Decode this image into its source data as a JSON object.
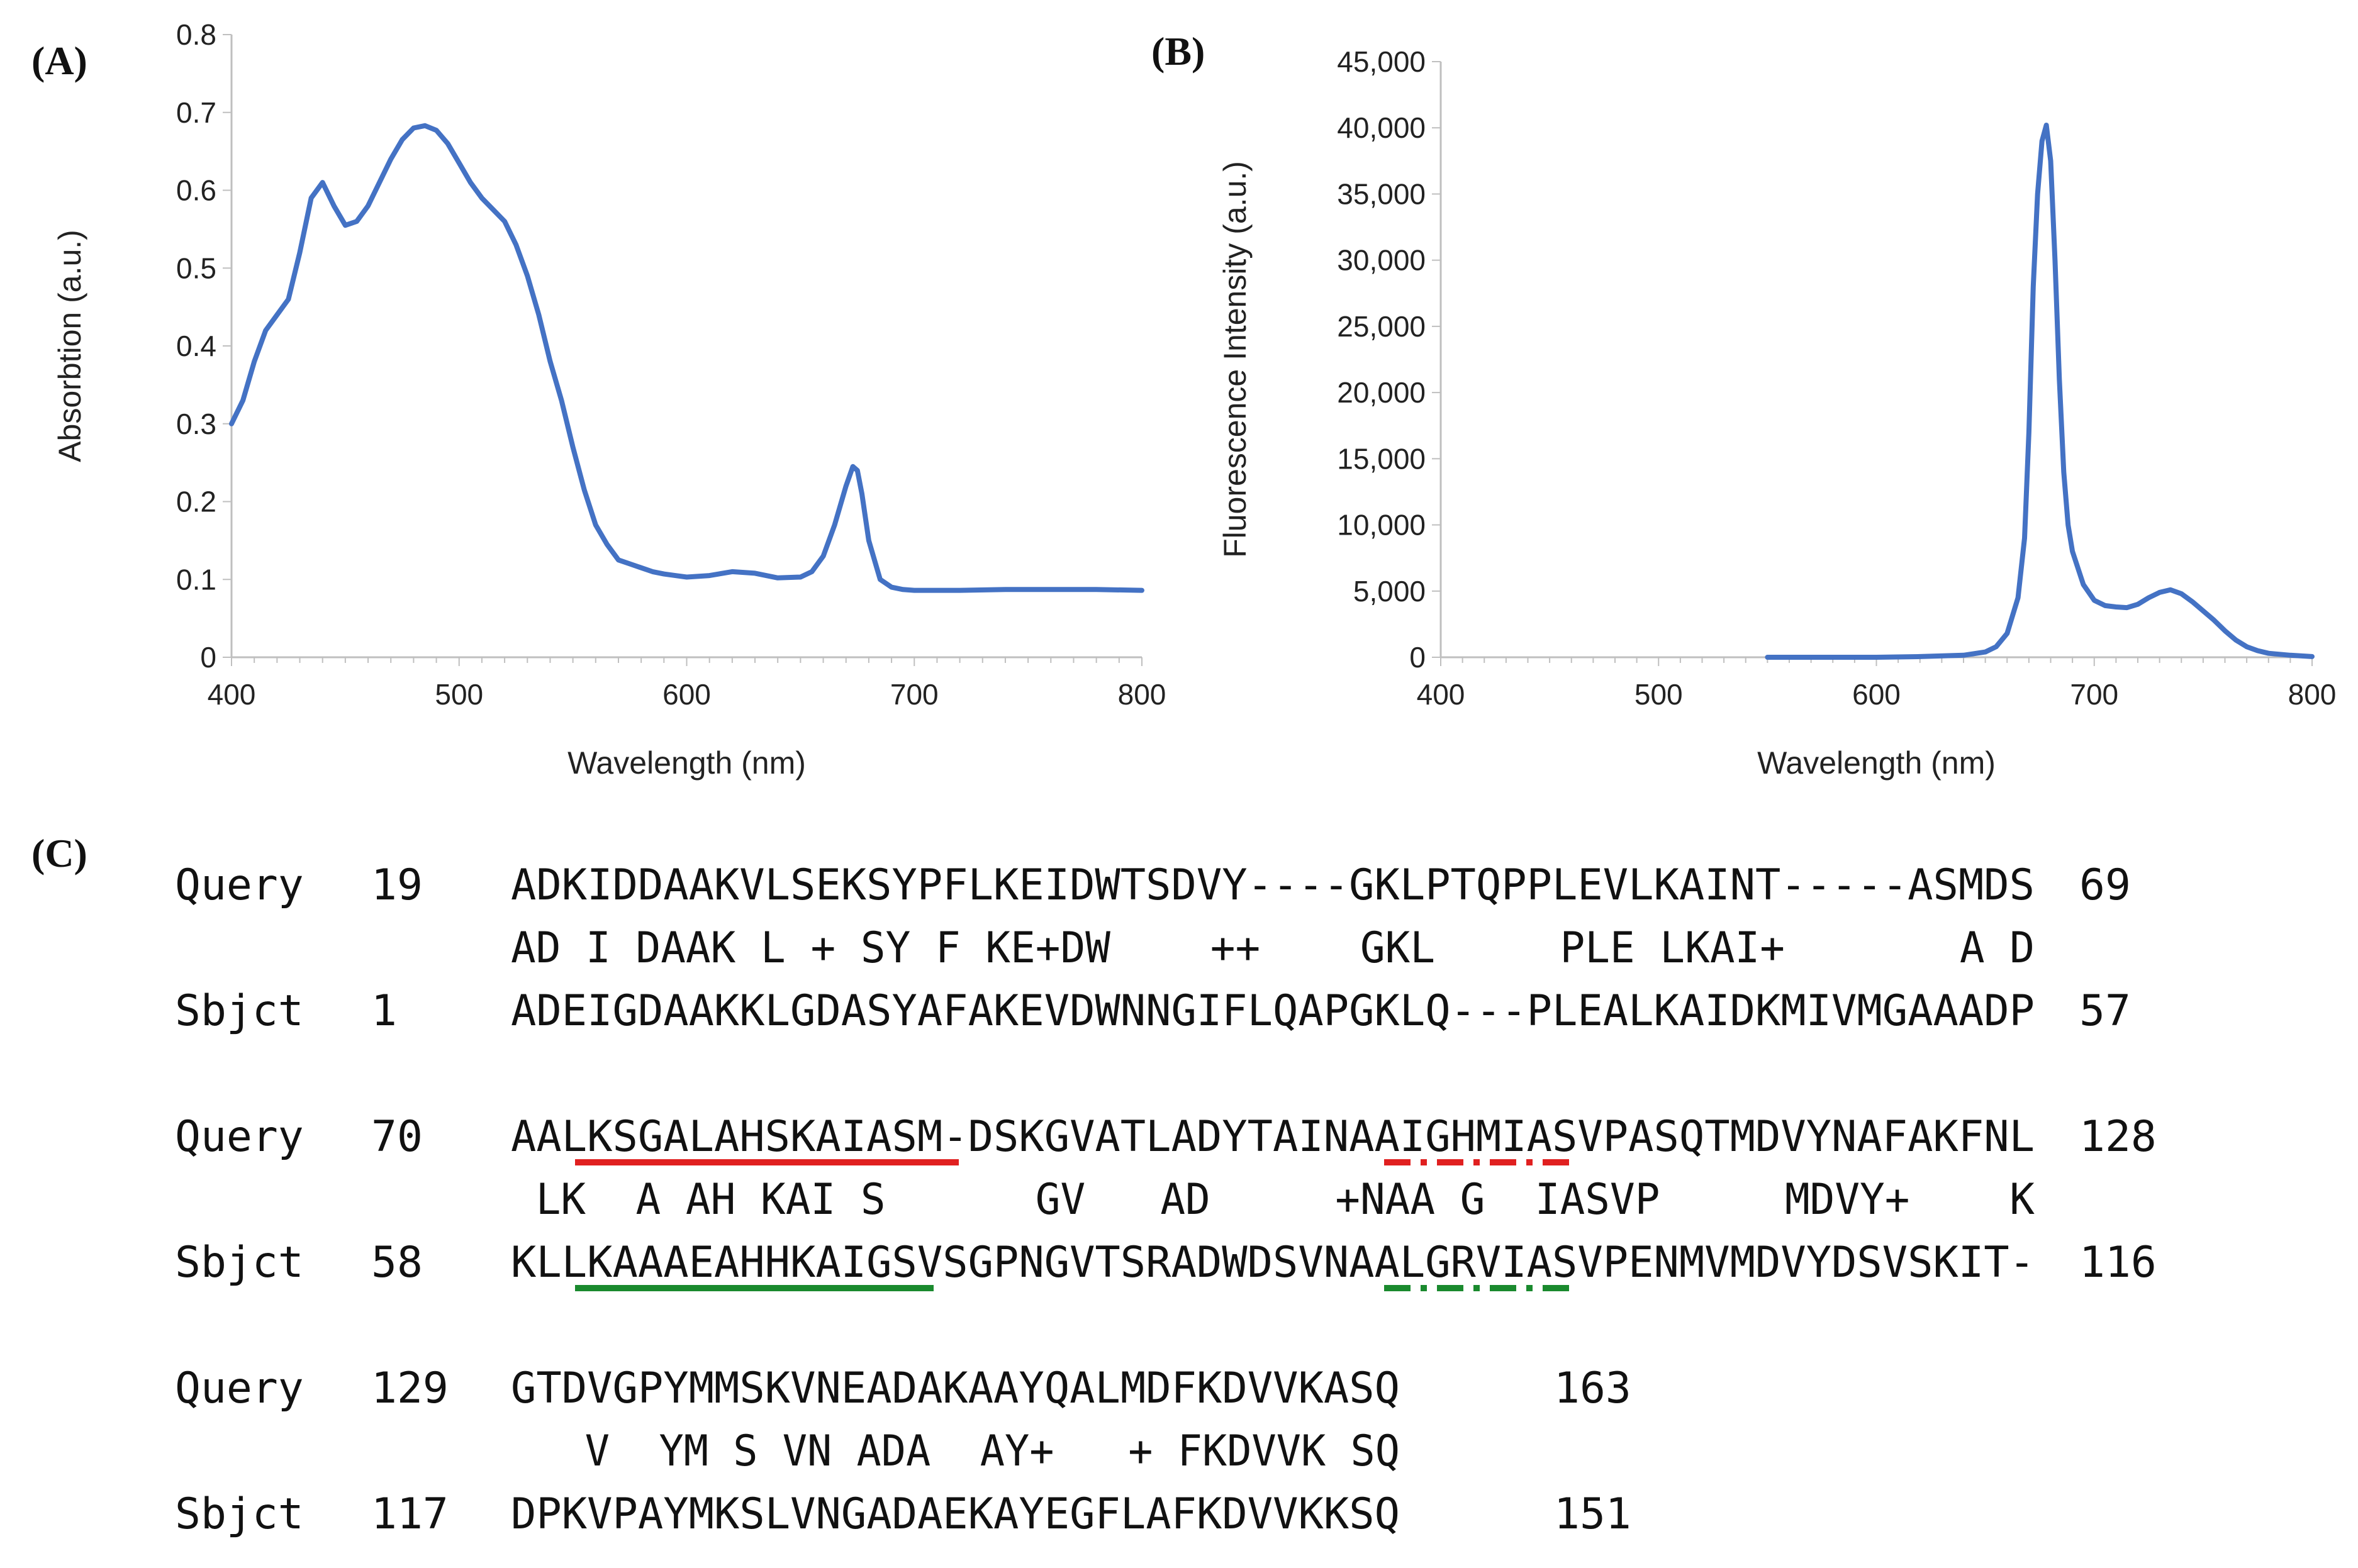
{
  "panels": {
    "a": "(A)",
    "b": "(B)",
    "c": "(C)"
  },
  "colors": {
    "line": "#4472C4",
    "axis": "#bfbfbf",
    "red": "#e02020",
    "green": "#1a8a2e"
  },
  "chart_data": [
    {
      "type": "line",
      "xlabel": "Wavelength (nm)",
      "ylabel": "Absorbtion (a.u.)",
      "xlim": [
        400,
        800
      ],
      "ylim": [
        0,
        0.8
      ],
      "xticks": [
        400,
        500,
        600,
        700,
        800
      ],
      "yticks": [
        0,
        0.1,
        0.2,
        0.3,
        0.4,
        0.5,
        0.6,
        0.7,
        0.8
      ],
      "ytick_labels": [
        "0",
        "0.1",
        "0.2",
        "0.3",
        "0.4",
        "0.5",
        "0.6",
        "0.7",
        "0.8"
      ],
      "grid": false,
      "series": [
        {
          "x": [
            400,
            405,
            410,
            415,
            420,
            425,
            430,
            435,
            440,
            445,
            450,
            455,
            460,
            465,
            470,
            475,
            480,
            485,
            490,
            495,
            500,
            505,
            510,
            515,
            520,
            525,
            530,
            535,
            540,
            545,
            550,
            555,
            560,
            565,
            570,
            575,
            580,
            585,
            590,
            595,
            600,
            610,
            620,
            630,
            640,
            650,
            655,
            660,
            665,
            670,
            673,
            675,
            677,
            680,
            685,
            690,
            695,
            700,
            720,
            740,
            760,
            780,
            800
          ],
          "y": [
            0.3,
            0.33,
            0.38,
            0.42,
            0.44,
            0.46,
            0.52,
            0.59,
            0.61,
            0.58,
            0.555,
            0.56,
            0.58,
            0.61,
            0.64,
            0.665,
            0.68,
            0.683,
            0.677,
            0.66,
            0.635,
            0.61,
            0.59,
            0.575,
            0.56,
            0.53,
            0.49,
            0.44,
            0.38,
            0.33,
            0.27,
            0.215,
            0.17,
            0.145,
            0.125,
            0.12,
            0.115,
            0.11,
            0.107,
            0.105,
            0.103,
            0.105,
            0.11,
            0.108,
            0.102,
            0.103,
            0.11,
            0.13,
            0.17,
            0.22,
            0.245,
            0.24,
            0.21,
            0.15,
            0.1,
            0.09,
            0.087,
            0.086,
            0.086,
            0.087,
            0.087,
            0.087,
            0.086
          ]
        }
      ]
    },
    {
      "type": "line",
      "xlabel": "Wavelength (nm)",
      "ylabel": "Fluorescence Intensity (a.u.)",
      "xlim": [
        400,
        800
      ],
      "ylim": [
        0,
        45000
      ],
      "xticks": [
        400,
        500,
        600,
        700,
        800
      ],
      "yticks": [
        0,
        5000,
        10000,
        15000,
        20000,
        25000,
        30000,
        35000,
        40000,
        45000
      ],
      "ytick_labels": [
        "0",
        "5,000",
        "10,000",
        "15,000",
        "20,000",
        "25,000",
        "30,000",
        "35,000",
        "40,000",
        "45,000"
      ],
      "grid": false,
      "series": [
        {
          "x": [
            550,
            600,
            620,
            640,
            650,
            655,
            660,
            665,
            668,
            670,
            672,
            674,
            676,
            678,
            680,
            682,
            684,
            686,
            688,
            690,
            695,
            700,
            705,
            710,
            715,
            720,
            725,
            730,
            735,
            740,
            745,
            750,
            755,
            760,
            765,
            770,
            775,
            780,
            790,
            800
          ],
          "y": [
            0,
            0,
            50,
            150,
            400,
            800,
            1800,
            4500,
            9000,
            17000,
            28000,
            35000,
            39000,
            40200,
            37500,
            30000,
            21000,
            14000,
            10000,
            8000,
            5500,
            4300,
            3900,
            3800,
            3750,
            4000,
            4500,
            4900,
            5100,
            4800,
            4200,
            3500,
            2800,
            2000,
            1300,
            800,
            500,
            300,
            150,
            50
          ]
        }
      ]
    }
  ],
  "alignment": {
    "blocks": [
      {
        "query": {
          "tag": "Query",
          "start": "19",
          "seq": "ADKIDDAAKVLSEKSYPFLKEIDWTSDVY----GKLPTQPPLEVLKAINT-----ASMDS",
          "end": "69"
        },
        "match": "ADKIDDAAKVLSEKSYPFLKEIDWTSDVY----GKLPTQPPLEVLKAINT-----ASMDS",
        "sbjct": {
          "tag": "Sbjct",
          "start": "1",
          "seq": "ADEIGDAAKKLGDASYAFAKEVDWNNGIFLQAPGKLQ---PLEALKAIDKMIVMGAAADP",
          "end": "57"
        }
      },
      {
        "query": {
          "tag": "Query",
          "start": "70",
          "seq": "AALKSGALAHSKAIASM-DSKGVATLADYTAINAAIGHMIASVPASQTMDVYNAFAKFNL",
          "end": "128"
        },
        "match": "AALKSGALAHSKAIASM-DSKGVATLADYTAINAAIGHMIASVPASQTMDVYNAFAKFNL",
        "sbjct": {
          "tag": "Sbjct",
          "start": "58",
          "seq": "KLLKAAAEAHHKAIGSVSGPNGVTSRADWDSVNAALGRVIASVPENMVMDVYDSVSKIT-",
          "end": "116"
        }
      },
      {
        "query": {
          "tag": "Query",
          "start": "129",
          "seq": "GTDVGPYMMSKVNEADAKAAYQALMDFKDVVKASQ",
          "end": "163"
        },
        "match": "GTDVGPYMMSKVNEADAKAAYQALMDFKDVVKASQ",
        "sbjct": {
          "tag": "Sbjct",
          "start": "117",
          "seq": "DPKVPAYMKSLVNGADAEKAYEGFLAFKDVVKKSQ",
          "end": "151"
        }
      }
    ],
    "match_lines": [
      "AD I DAAK L + SY F KE+DW    ++    GKL     PLE LKAI+       A D",
      " LK  A AH KAI S      GV   AD     +NAA G  IASVP     MDVY+    K",
      "   V  YM S VN ADA  AY+   + FKDVVK SQ"
    ]
  }
}
